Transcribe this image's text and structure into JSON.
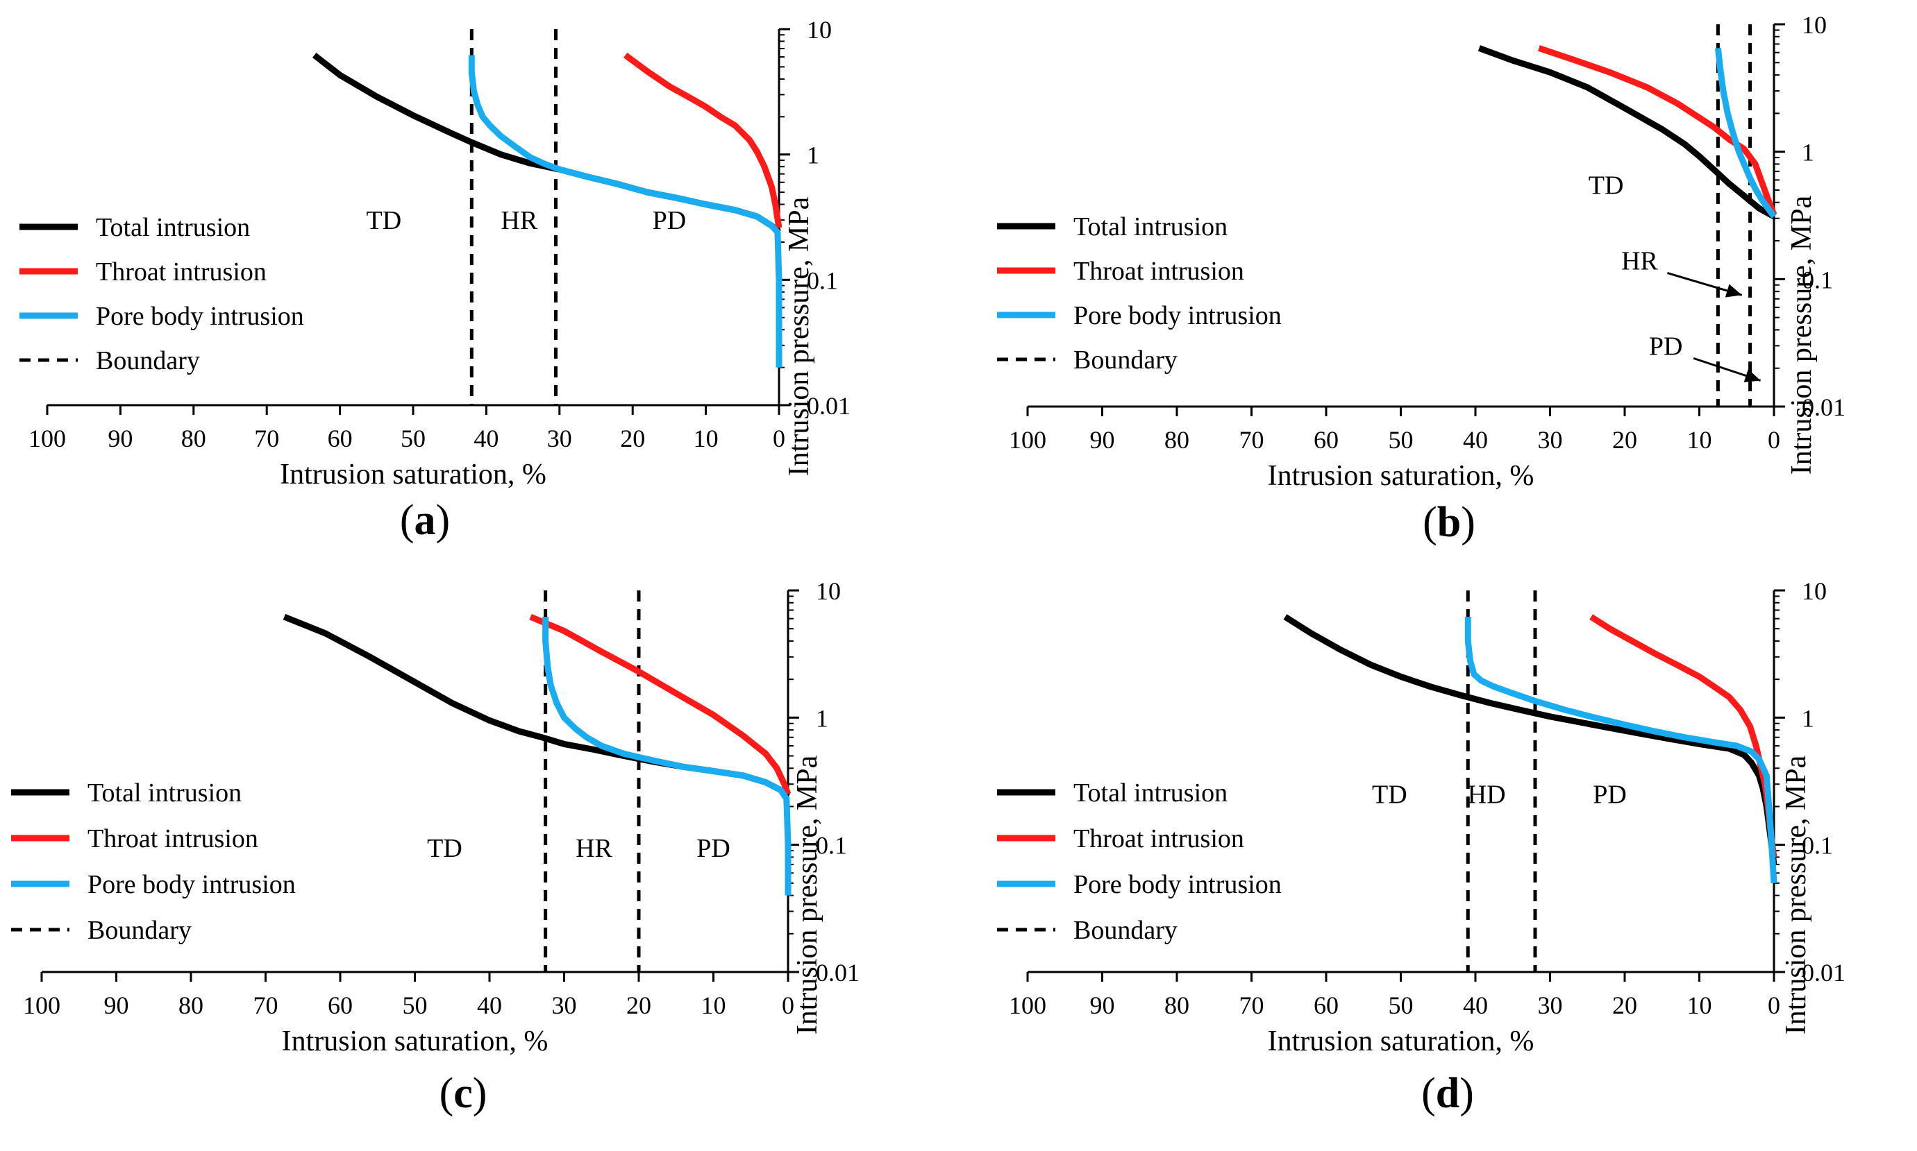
{
  "figure": {
    "legend_labels": {
      "total": "Total intrusion",
      "throat": "Throat intrusion",
      "pore": "Pore body intrusion",
      "boundary": "Boundary"
    },
    "series_colors": {
      "total": "#000000",
      "throat": "#ff1a1a",
      "pore": "#1aacf0",
      "boundary": "#000000"
    }
  },
  "chart_data": [
    {
      "panel": "a",
      "caption": "(a)",
      "type": "line",
      "xlabel": "Intrusion saturation, %",
      "ylabel": "Intrusion pressure, MPa",
      "x_reversed": true,
      "xlim": [
        0,
        100
      ],
      "ylim": [
        0.01,
        10
      ],
      "y_scale": "log",
      "xticks": [
        "100",
        "90",
        "80",
        "70",
        "60",
        "50",
        "40",
        "30",
        "20",
        "10",
        "0"
      ],
      "yticks": [
        "10",
        "1",
        "0.1",
        "0.01"
      ],
      "boundaries": [
        42,
        30.5
      ],
      "regions": [
        {
          "label": "TD",
          "x": 54,
          "y": 0.3
        },
        {
          "label": "HR",
          "x": 35.5,
          "y": 0.3
        },
        {
          "label": "PD",
          "x": 15,
          "y": 0.3
        }
      ],
      "series": [
        {
          "name": "Total intrusion",
          "key": "total",
          "x": [
            63.5,
            60,
            55,
            50,
            45,
            42,
            38,
            34,
            30,
            26,
            22,
            18,
            14,
            10,
            6,
            3,
            1,
            0
          ],
          "y": [
            6.2,
            4.3,
            2.9,
            2.05,
            1.5,
            1.25,
            1.0,
            0.85,
            0.76,
            0.66,
            0.58,
            0.5,
            0.45,
            0.4,
            0.36,
            0.32,
            0.27,
            0.24
          ]
        },
        {
          "name": "Throat intrusion",
          "key": "throat",
          "x": [
            21,
            18,
            15,
            12,
            10,
            8,
            6,
            4,
            3,
            2,
            1,
            0.5,
            0
          ],
          "y": [
            6.2,
            4.6,
            3.5,
            2.8,
            2.4,
            2.0,
            1.7,
            1.3,
            1.05,
            0.8,
            0.55,
            0.4,
            0.26
          ]
        },
        {
          "name": "Pore body intrusion",
          "key": "pore",
          "x": [
            42,
            42,
            41.7,
            41.2,
            40.5,
            39.5,
            38,
            36,
            34,
            32,
            30,
            26,
            22,
            18,
            14,
            10,
            6,
            3,
            1,
            0.2,
            0,
            0
          ],
          "y": [
            6.2,
            4.5,
            3.2,
            2.5,
            2.0,
            1.7,
            1.4,
            1.15,
            0.95,
            0.84,
            0.76,
            0.66,
            0.58,
            0.5,
            0.45,
            0.4,
            0.36,
            0.32,
            0.27,
            0.24,
            0.1,
            0.02
          ]
        }
      ]
    },
    {
      "panel": "b",
      "caption": "(b)",
      "type": "line",
      "xlabel": "Intrusion saturation, %",
      "ylabel": "Intrusion pressure, MPa",
      "x_reversed": true,
      "xlim": [
        0,
        100
      ],
      "ylim": [
        0.01,
        10
      ],
      "y_scale": "log",
      "xticks": [
        "100",
        "90",
        "80",
        "70",
        "60",
        "50",
        "40",
        "30",
        "20",
        "10",
        "0"
      ],
      "yticks": [
        "10",
        "1",
        "0.1",
        "0.01"
      ],
      "boundaries": [
        7.5,
        3.2
      ],
      "regions": [
        {
          "label": "TD",
          "x": 22.5,
          "y": 0.55
        }
      ],
      "annotations": [
        {
          "label": "HR",
          "text_x": 18,
          "text_y": 0.14,
          "arrow_x": 4.3,
          "arrow_y": 0.075
        },
        {
          "label": "PD",
          "text_x": 14.5,
          "text_y": 0.03,
          "arrow_x": 1.8,
          "arrow_y": 0.016
        }
      ],
      "series": [
        {
          "name": "Total intrusion",
          "key": "total",
          "x": [
            39.5,
            35,
            30,
            25,
            20,
            15,
            12,
            10,
            8,
            6,
            4,
            2,
            0
          ],
          "y": [
            6.5,
            5.2,
            4.2,
            3.2,
            2.2,
            1.5,
            1.15,
            0.92,
            0.72,
            0.56,
            0.45,
            0.36,
            0.31
          ]
        },
        {
          "name": "Throat intrusion",
          "key": "throat",
          "x": [
            31.5,
            27,
            22,
            17,
            13,
            10,
            8,
            6,
            4,
            2.5,
            1.5,
            0.5,
            0
          ],
          "y": [
            6.5,
            5.3,
            4.2,
            3.2,
            2.4,
            1.85,
            1.55,
            1.25,
            1.05,
            0.8,
            0.55,
            0.38,
            0.32
          ]
        },
        {
          "name": "Pore body intrusion",
          "key": "pore",
          "x": [
            7.5,
            7.2,
            6.8,
            6.2,
            5.5,
            4.7,
            4,
            3.2,
            2.4,
            1.5,
            0.5,
            0
          ],
          "y": [
            6.5,
            4.5,
            3.0,
            2.0,
            1.4,
            1.0,
            0.8,
            0.62,
            0.5,
            0.41,
            0.34,
            0.31
          ]
        }
      ]
    },
    {
      "panel": "c",
      "caption": "(c)",
      "type": "line",
      "xlabel": "Intrusion saturation, %",
      "ylabel": "Intrusion pressure, MPa",
      "x_reversed": true,
      "xlim": [
        0,
        100
      ],
      "ylim": [
        0.01,
        10
      ],
      "y_scale": "log",
      "xticks": [
        "100",
        "90",
        "80",
        "70",
        "60",
        "50",
        "40",
        "30",
        "20",
        "10",
        "0"
      ],
      "yticks": [
        "10",
        "1",
        "0.1",
        "0.01"
      ],
      "boundaries": [
        32.5,
        20
      ],
      "regions": [
        {
          "label": "TD",
          "x": 46,
          "y": 0.095
        },
        {
          "label": "HR",
          "x": 26,
          "y": 0.095
        },
        {
          "label": "PD",
          "x": 10,
          "y": 0.095
        }
      ],
      "series": [
        {
          "name": "Total intrusion",
          "key": "total",
          "x": [
            67.5,
            62,
            56,
            50,
            45,
            40,
            36,
            33,
            30,
            26,
            22,
            18,
            14,
            10,
            6,
            3,
            1,
            0
          ],
          "y": [
            6.2,
            4.6,
            3.0,
            1.9,
            1.3,
            0.95,
            0.78,
            0.7,
            0.62,
            0.56,
            0.5,
            0.45,
            0.41,
            0.38,
            0.35,
            0.31,
            0.27,
            0.24
          ]
        },
        {
          "name": "Throat intrusion",
          "key": "throat",
          "x": [
            34.5,
            30,
            25,
            20,
            15,
            10,
            6,
            3,
            1.5,
            0.5,
            0
          ],
          "y": [
            6.2,
            4.8,
            3.3,
            2.3,
            1.55,
            1.05,
            0.72,
            0.52,
            0.4,
            0.3,
            0.25
          ]
        },
        {
          "name": "Pore body intrusion",
          "key": "pore",
          "x": [
            32.5,
            32.5,
            32.2,
            31.8,
            31,
            30,
            28.5,
            27,
            25,
            22,
            18,
            14,
            10,
            6,
            3,
            1,
            0.2,
            0,
            0
          ],
          "y": [
            6.2,
            4.0,
            2.5,
            1.8,
            1.3,
            1.0,
            0.82,
            0.7,
            0.6,
            0.52,
            0.46,
            0.41,
            0.38,
            0.35,
            0.31,
            0.27,
            0.23,
            0.1,
            0.04
          ]
        }
      ]
    },
    {
      "panel": "d",
      "caption": "(d)",
      "type": "line",
      "xlabel": "Intrusion saturation, %",
      "ylabel": "Intrusion pressure, MPa",
      "x_reversed": true,
      "xlim": [
        0,
        100
      ],
      "ylim": [
        0.01,
        10
      ],
      "y_scale": "log",
      "xticks": [
        "100",
        "90",
        "80",
        "70",
        "60",
        "50",
        "40",
        "30",
        "20",
        "10",
        "0"
      ],
      "yticks": [
        "10",
        "1",
        "0.1",
        "0.01"
      ],
      "boundaries": [
        41,
        32
      ],
      "regions": [
        {
          "label": "TD",
          "x": 51.5,
          "y": 0.25
        },
        {
          "label": "HD",
          "x": 38.5,
          "y": 0.25
        },
        {
          "label": "PD",
          "x": 22,
          "y": 0.25
        }
      ],
      "series": [
        {
          "name": "Total intrusion",
          "key": "total",
          "x": [
            65.5,
            62,
            58,
            54,
            50,
            46,
            42,
            38,
            34,
            30,
            26,
            22,
            18,
            14,
            10,
            6,
            4,
            3,
            2,
            1.5,
            1,
            0.5,
            0
          ],
          "y": [
            6.2,
            4.6,
            3.4,
            2.6,
            2.1,
            1.75,
            1.5,
            1.3,
            1.15,
            1.02,
            0.92,
            0.83,
            0.75,
            0.68,
            0.62,
            0.57,
            0.51,
            0.44,
            0.35,
            0.28,
            0.2,
            0.12,
            0.07
          ]
        },
        {
          "name": "Throat intrusion",
          "key": "throat",
          "x": [
            24.5,
            22,
            19,
            16,
            13,
            10,
            8,
            6,
            4.5,
            3.2,
            2.4,
            1.8,
            1.2,
            0.8,
            0.4,
            0
          ],
          "y": [
            6.2,
            5.0,
            4.0,
            3.2,
            2.6,
            2.1,
            1.75,
            1.45,
            1.15,
            0.85,
            0.6,
            0.42,
            0.3,
            0.2,
            0.12,
            0.08
          ]
        },
        {
          "name": "Pore body intrusion",
          "key": "pore",
          "x": [
            41,
            41,
            40.7,
            40.2,
            39.2,
            37.5,
            35,
            32,
            28,
            24,
            20,
            16,
            12,
            8,
            5,
            3,
            2,
            1,
            0.5,
            0
          ],
          "y": [
            6.2,
            4.0,
            2.8,
            2.2,
            1.95,
            1.75,
            1.55,
            1.35,
            1.15,
            1.0,
            0.88,
            0.78,
            0.7,
            0.64,
            0.6,
            0.54,
            0.47,
            0.35,
            0.15,
            0.05
          ]
        }
      ]
    }
  ]
}
